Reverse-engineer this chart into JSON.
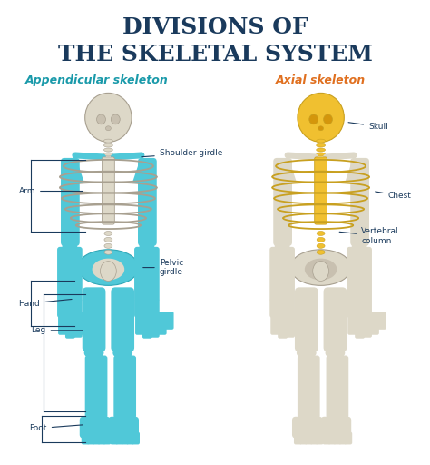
{
  "title_line1": "DIVISIONS OF",
  "title_line2": "THE SKELETAL SYSTEM",
  "title_color": "#1a3a5c",
  "title_fontsize": 18,
  "left_label": "Appendicular skeleton",
  "left_label_color": "#1a9aaa",
  "right_label": "Axial skeleton",
  "right_label_color": "#e07020",
  "bg_color": "#ffffff",
  "appendicular_color": "#50c8d8",
  "appendicular_dark": "#30a8b8",
  "axial_color": "#f0c030",
  "axial_dark": "#c8a020",
  "bone_color": "#ddd8c8",
  "bone_mid": "#c8c0b0",
  "bone_dark": "#a8a090",
  "label_color": "#1a3a5c",
  "label_fontsize": 6.5
}
